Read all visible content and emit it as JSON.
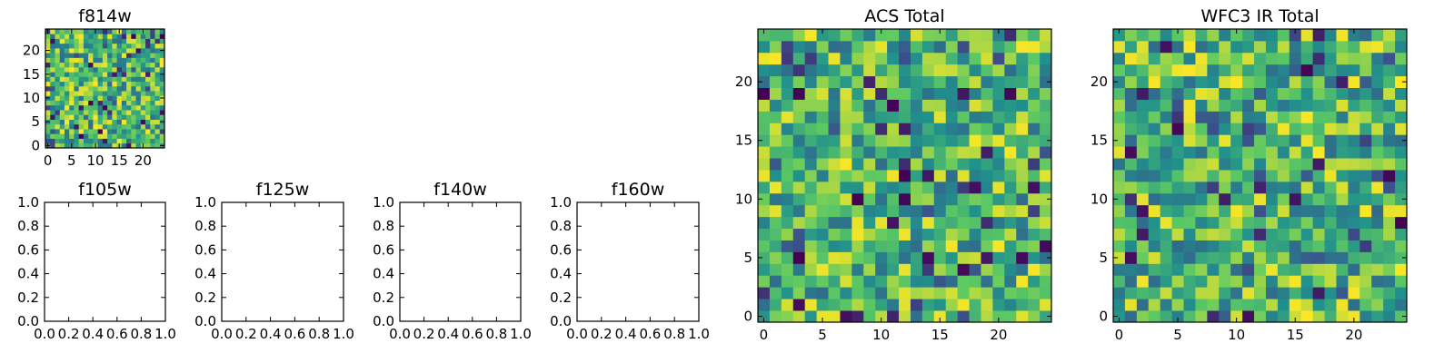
{
  "colormap": [
    "#440154",
    "#3b528b",
    "#21918c",
    "#5ec962",
    "#fde725"
  ],
  "chart_data": [
    {
      "id": "f814w",
      "type": "heatmap",
      "title": "f814w",
      "grid_size": 25,
      "xlim": [
        -0.5,
        24.5
      ],
      "ylim": [
        -0.5,
        24.5
      ],
      "xticks": [
        0,
        5,
        10,
        15,
        20
      ],
      "yticks": [
        0,
        5,
        10,
        15,
        20
      ],
      "tick_labels_x": [
        "0",
        "5",
        "10",
        "15",
        "20"
      ],
      "tick_labels_y": [
        "0",
        "5",
        "10",
        "15",
        "20"
      ],
      "value_range": [
        0,
        1
      ],
      "seed": 11
    },
    {
      "id": "f105w",
      "type": "empty",
      "title": "f105w",
      "xlim": [
        0,
        1
      ],
      "ylim": [
        0,
        1
      ],
      "xticks": [
        0,
        0.2,
        0.4,
        0.6,
        0.8,
        1.0
      ],
      "yticks": [
        0,
        0.2,
        0.4,
        0.6,
        0.8,
        1.0
      ],
      "tick_labels_x": [
        "0.0",
        "0.2",
        "0.4",
        "0.6",
        "0.8",
        "1.0"
      ],
      "tick_labels_y": [
        "0.0",
        "0.2",
        "0.4",
        "0.6",
        "0.8",
        "1.0"
      ]
    },
    {
      "id": "f125w",
      "type": "empty",
      "title": "f125w",
      "xlim": [
        0,
        1
      ],
      "ylim": [
        0,
        1
      ],
      "xticks": [
        0,
        0.2,
        0.4,
        0.6,
        0.8,
        1.0
      ],
      "yticks": [
        0,
        0.2,
        0.4,
        0.6,
        0.8,
        1.0
      ],
      "tick_labels_x": [
        "0.0",
        "0.2",
        "0.4",
        "0.6",
        "0.8",
        "1.0"
      ],
      "tick_labels_y": [
        "0.0",
        "0.2",
        "0.4",
        "0.6",
        "0.8",
        "1.0"
      ]
    },
    {
      "id": "f140w",
      "type": "empty",
      "title": "f140w",
      "xlim": [
        0,
        1
      ],
      "ylim": [
        0,
        1
      ],
      "xticks": [
        0,
        0.2,
        0.4,
        0.6,
        0.8,
        1.0
      ],
      "yticks": [
        0,
        0.2,
        0.4,
        0.6,
        0.8,
        1.0
      ],
      "tick_labels_x": [
        "0.0",
        "0.2",
        "0.4",
        "0.6",
        "0.8",
        "1.0"
      ],
      "tick_labels_y": [
        "0.0",
        "0.2",
        "0.4",
        "0.6",
        "0.8",
        "1.0"
      ]
    },
    {
      "id": "f160w",
      "type": "empty",
      "title": "f160w",
      "xlim": [
        0,
        1
      ],
      "ylim": [
        0,
        1
      ],
      "xticks": [
        0,
        0.2,
        0.4,
        0.6,
        0.8,
        1.0
      ],
      "yticks": [
        0,
        0.2,
        0.4,
        0.6,
        0.8,
        1.0
      ],
      "tick_labels_x": [
        "0.0",
        "0.2",
        "0.4",
        "0.6",
        "0.8",
        "1.0"
      ],
      "tick_labels_y": [
        "0.0",
        "0.2",
        "0.4",
        "0.6",
        "0.8",
        "1.0"
      ]
    },
    {
      "id": "acs-total",
      "type": "heatmap",
      "title": "ACS Total",
      "grid_size": 25,
      "xlim": [
        -0.5,
        24.5
      ],
      "ylim": [
        -0.5,
        24.5
      ],
      "xticks": [
        0,
        5,
        10,
        15,
        20
      ],
      "yticks": [
        0,
        5,
        10,
        15,
        20
      ],
      "tick_labels_x": [
        "0",
        "5",
        "10",
        "15",
        "20"
      ],
      "tick_labels_y": [
        "0",
        "5",
        "10",
        "15",
        "20"
      ],
      "value_range": [
        0,
        1
      ],
      "seed": 29
    },
    {
      "id": "wfc3-ir-total",
      "type": "heatmap",
      "title": "WFC3 IR Total",
      "grid_size": 25,
      "xlim": [
        -0.5,
        24.5
      ],
      "ylim": [
        -0.5,
        24.5
      ],
      "xticks": [
        0,
        5,
        10,
        15,
        20
      ],
      "yticks": [
        0,
        5,
        10,
        15,
        20
      ],
      "tick_labels_x": [
        "0",
        "5",
        "10",
        "15",
        "20"
      ],
      "tick_labels_y": [
        "0",
        "5",
        "10",
        "15",
        "20"
      ],
      "value_range": [
        0,
        1
      ],
      "seed": 47
    }
  ]
}
